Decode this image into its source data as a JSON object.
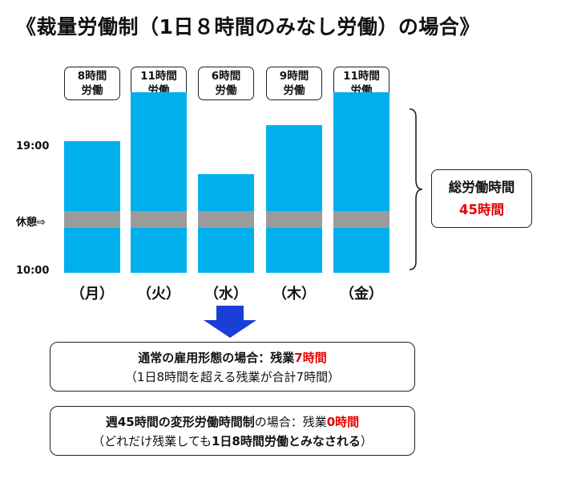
{
  "title": "《裁量労働制（1日８時間のみなし労働）の場合》",
  "days": [
    {
      "label": "（月）",
      "hours_line1": "8時間",
      "hours_line2": "労働",
      "hours": 8
    },
    {
      "label": "（火）",
      "hours_line1": "11時間",
      "hours_line2": "労働",
      "hours": 11
    },
    {
      "label": "（水）",
      "hours_line1": "6時間",
      "hours_line2": "労働",
      "hours": 6
    },
    {
      "label": "（木）",
      "hours_line1": "9時間",
      "hours_line2": "労働",
      "hours": 9
    },
    {
      "label": "（金）",
      "hours_line1": "11時間",
      "hours_line2": "労働",
      "hours": 11
    }
  ],
  "y_labels": {
    "top": "19:00",
    "rest": "休憩⇨",
    "bottom": "10:00"
  },
  "summary": {
    "label": "総労働時間",
    "value": "45時間"
  },
  "colors": {
    "bar": "#00b0ec",
    "rest": "#9b9b9b",
    "arrow": "#1a3fd6",
    "accent": "#e60000"
  },
  "box1": {
    "line1_pre": "通常の雇用形態の場合：残業",
    "line1_hl": "7時間",
    "line2": "（1日8時間を超える残業が合計7時間）"
  },
  "box2": {
    "line1_pre": "週45時間の変形労働時間制",
    "line1_mid": "の場合：残業",
    "line1_hl": "0時間",
    "line2_pre": "（どれだけ残業しても",
    "line2_bold": "1日8時間労働とみなされる",
    "line2_post": "）"
  }
}
